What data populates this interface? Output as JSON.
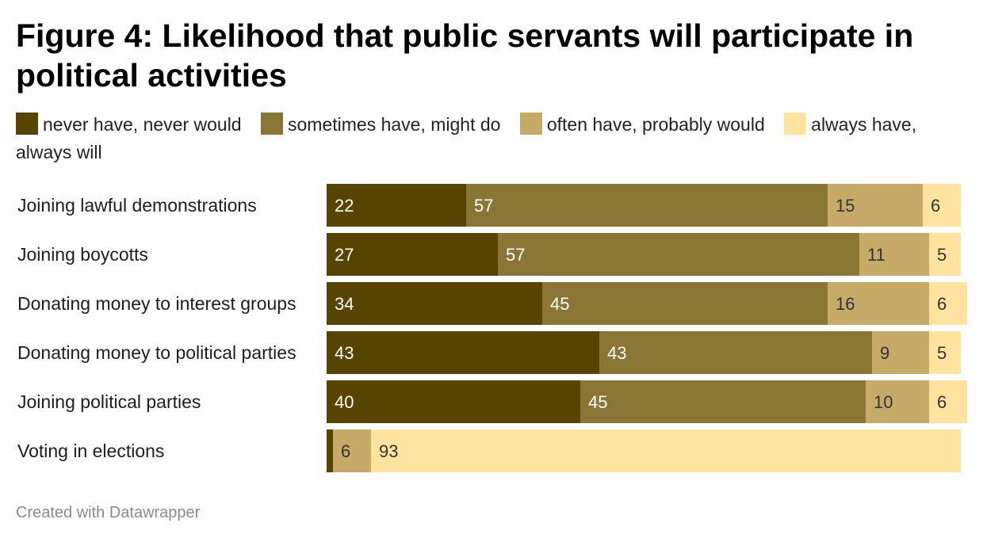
{
  "title": "Figure 4: Likelihood that public servants will participate in political activities",
  "footer": "Created with Datawrapper",
  "colors": {
    "never": "#574400",
    "sometimes": "#8a7634",
    "often": "#c5ab67",
    "always": "#ffe39e"
  },
  "chart_data": {
    "type": "bar",
    "orientation": "horizontal",
    "stacked": true,
    "title": "Figure 4: Likelihood that public servants will participate in political activities",
    "legend_position": "top",
    "categories": [
      "Joining lawful demonstrations",
      "Joining boycotts",
      "Donating money to interest groups",
      "Donating money to political parties",
      "Joining political parties",
      "Voting in elections"
    ],
    "series": [
      {
        "name": "never have, never would",
        "values": [
          22,
          27,
          34,
          43,
          40,
          1
        ]
      },
      {
        "name": "sometimes have, might do",
        "values": [
          57,
          57,
          45,
          43,
          45,
          0
        ]
      },
      {
        "name": "often have, probably would",
        "values": [
          15,
          11,
          16,
          9,
          10,
          6
        ]
      },
      {
        "name": "always have, always will",
        "values": [
          6,
          5,
          6,
          5,
          6,
          93
        ]
      }
    ],
    "data_labels": [
      [
        "22",
        "57",
        "15",
        "6"
      ],
      [
        "27",
        "57",
        "11",
        "5"
      ],
      [
        "34",
        "45",
        "16",
        "6"
      ],
      [
        "43",
        "43",
        "9",
        "5"
      ],
      [
        "40",
        "45",
        "10",
        "6"
      ],
      [
        "",
        "",
        "6",
        "93"
      ]
    ]
  }
}
